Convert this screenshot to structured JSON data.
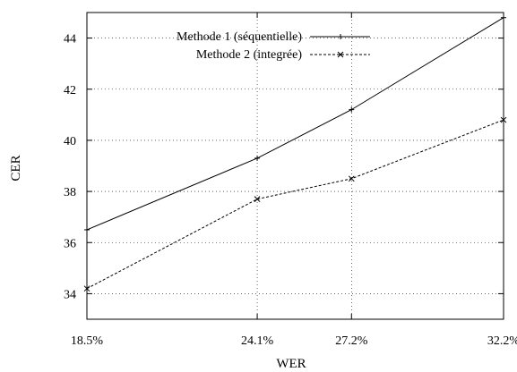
{
  "chart_data": {
    "type": "line",
    "xlabel": "WER",
    "ylabel": "CER",
    "x": [
      18.5,
      24.1,
      27.2,
      32.2
    ],
    "x_tick_labels": [
      "18.5%",
      "24.1%",
      "27.2%",
      "32.2%"
    ],
    "xlim": [
      18.5,
      32.2
    ],
    "ylim": [
      33.0,
      45.0
    ],
    "y_ticks": [
      34,
      36,
      38,
      40,
      42,
      44
    ],
    "grid": true,
    "legend_position": "top-right",
    "series": [
      {
        "name": "Methode 1 (séquentielle)",
        "values": [
          36.5,
          39.3,
          41.2,
          44.8
        ],
        "line_style": "solid",
        "marker": "plus",
        "color": "#000000"
      },
      {
        "name": "Methode 2 (integrée)",
        "values": [
          34.2,
          37.7,
          38.5,
          40.8
        ],
        "line_style": "dashed",
        "marker": "cross",
        "color": "#000000"
      }
    ]
  }
}
